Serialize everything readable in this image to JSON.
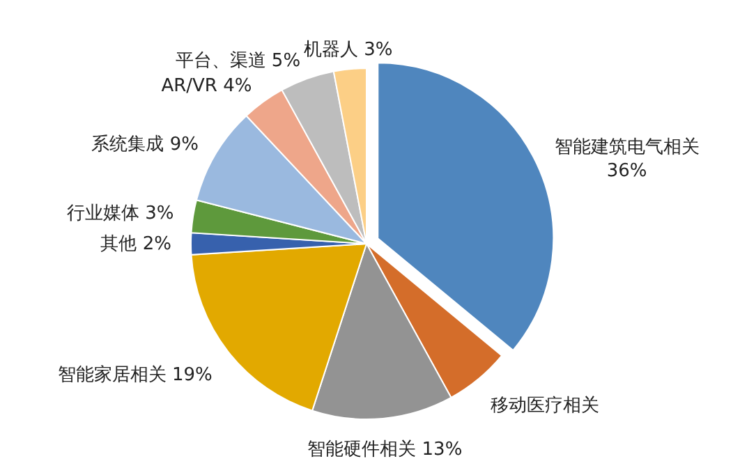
{
  "chart_data": {
    "type": "pie",
    "categories": [
      "智能建筑电气相关",
      "移动医疗相关",
      "智能硬件相关",
      "智能家居相关",
      "其他",
      "行业媒体",
      "系统集成",
      "AR/VR",
      "平台、渠道",
      "机器人"
    ],
    "values": [
      36,
      6,
      13,
      19,
      2,
      3,
      9,
      4,
      5,
      3
    ],
    "value_labels": [
      "36%",
      null,
      "13%",
      "19%",
      "2%",
      "3%",
      "9%",
      "4%",
      "5%",
      "3%"
    ],
    "colors": [
      "#4f86be",
      "#d46d2a",
      "#939393",
      "#e2a900",
      "#3761ad",
      "#5e993c",
      "#9ab9df",
      "#eea68a",
      "#bdbdbd",
      "#fccf86"
    ]
  }
}
